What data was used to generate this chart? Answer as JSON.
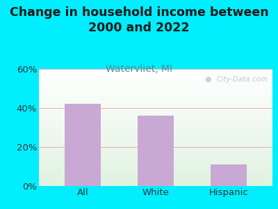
{
  "title": "Change in household income between\n2000 and 2022",
  "subtitle": "Watervliet, MI",
  "categories": [
    "All",
    "White",
    "Hispanic"
  ],
  "values": [
    42,
    36,
    11
  ],
  "bar_color": "#c9a8d4",
  "title_fontsize": 12.5,
  "subtitle_fontsize": 10,
  "subtitle_color": "#4a9090",
  "tick_label_fontsize": 9.5,
  "ylim": [
    0,
    60
  ],
  "yticks": [
    0,
    20,
    40,
    60
  ],
  "ytick_labels": [
    "0%",
    "20%",
    "40%",
    "60%"
  ],
  "bg_outer": "#00eeff",
  "title_color": "#1a1a1a",
  "watermark": "City-Data.com",
  "grid_color": "#e8b0b0",
  "grid_linewidth": 0.7
}
